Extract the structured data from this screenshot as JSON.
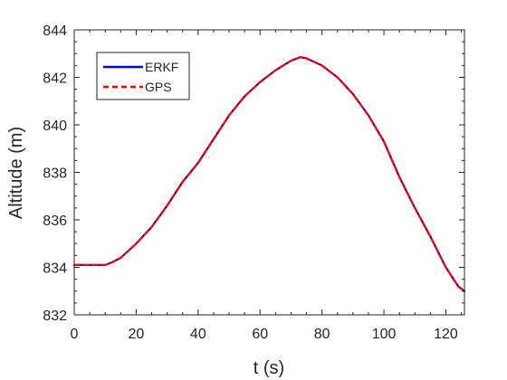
{
  "chart_data": {
    "type": "line",
    "title": "",
    "xlabel": "t (s)",
    "ylabel": "Altitude (m)",
    "xlim": [
      0,
      126
    ],
    "ylim": [
      832,
      844
    ],
    "xticks": [
      0,
      20,
      40,
      60,
      80,
      100,
      120
    ],
    "yticks": [
      832,
      834,
      836,
      838,
      840,
      842,
      844
    ],
    "xtick_labels": [
      "0",
      "20",
      "40",
      "60",
      "80",
      "100",
      "120"
    ],
    "ytick_labels": [
      "832",
      "834",
      "836",
      "838",
      "840",
      "842",
      "844"
    ],
    "grid": false,
    "box": true,
    "legend_position": "top-left",
    "series": [
      {
        "name": "ERKF",
        "color": "#0000ff",
        "style": "solid",
        "x": [
          0,
          5,
          10,
          12,
          15,
          20,
          25,
          30,
          35,
          40,
          45,
          50,
          55,
          60,
          65,
          70,
          73,
          75,
          80,
          85,
          90,
          95,
          100,
          105,
          110,
          115,
          120,
          124,
          126
        ],
        "y": [
          834.1,
          834.1,
          834.1,
          834.2,
          834.4,
          835.0,
          835.7,
          836.6,
          837.6,
          838.4,
          839.4,
          840.4,
          841.2,
          841.8,
          842.3,
          842.7,
          842.85,
          842.8,
          842.5,
          842.0,
          841.3,
          840.4,
          839.3,
          837.8,
          836.5,
          835.3,
          834.0,
          833.2,
          833.0
        ]
      },
      {
        "name": "GPS",
        "color": "#ff0000",
        "style": "dashed",
        "x": [
          0,
          5,
          10,
          12,
          15,
          20,
          25,
          30,
          35,
          40,
          45,
          50,
          55,
          60,
          65,
          70,
          73,
          75,
          80,
          85,
          90,
          95,
          100,
          105,
          110,
          115,
          120,
          124,
          126
        ],
        "y": [
          834.1,
          834.1,
          834.1,
          834.2,
          834.4,
          835.0,
          835.7,
          836.6,
          837.6,
          838.4,
          839.4,
          840.4,
          841.2,
          841.8,
          842.3,
          842.7,
          842.85,
          842.8,
          842.5,
          842.0,
          841.3,
          840.4,
          839.3,
          837.8,
          836.5,
          835.3,
          834.0,
          833.2,
          833.0
        ]
      }
    ]
  }
}
